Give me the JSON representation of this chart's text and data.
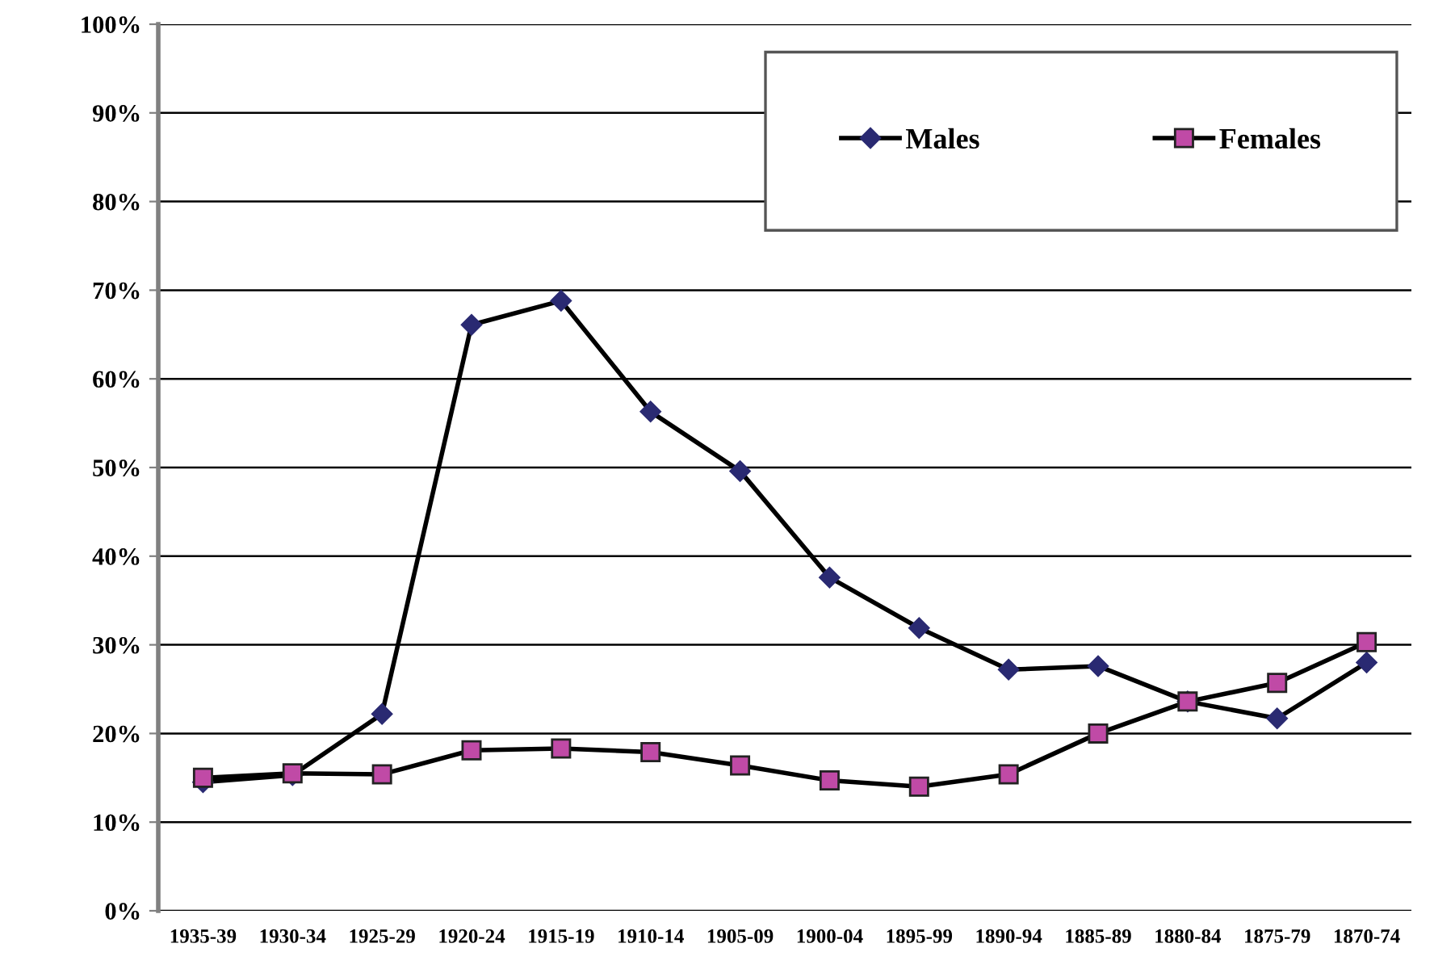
{
  "chart_data": {
    "type": "line",
    "categories": [
      "1935-39",
      "1930-34",
      "1925-29",
      "1920-24",
      "1915-19",
      "1910-14",
      "1905-09",
      "1900-04",
      "1895-99",
      "1890-94",
      "1885-89",
      "1880-84",
      "1875-79",
      "1870-74"
    ],
    "series": [
      {
        "name": "Males",
        "color": "#2a2a72",
        "marker": "diamond",
        "values": [
          14.5,
          15.3,
          22.2,
          66.1,
          68.8,
          56.3,
          49.6,
          37.6,
          31.9,
          27.2,
          27.6,
          23.6,
          21.7,
          28.0
        ]
      },
      {
        "name": "Females",
        "color": "#c04aa6",
        "marker": "square",
        "values": [
          15.0,
          15.5,
          15.4,
          18.1,
          18.3,
          17.9,
          16.4,
          14.7,
          14.0,
          15.4,
          20.0,
          23.6,
          25.7,
          30.3
        ]
      }
    ],
    "ylim": [
      0,
      100
    ],
    "yticks": [
      {
        "value": 0,
        "label": "0%"
      },
      {
        "value": 10,
        "label": "10%"
      },
      {
        "value": 20,
        "label": "20%"
      },
      {
        "value": 30,
        "label": "30%"
      },
      {
        "value": 40,
        "label": "40%"
      },
      {
        "value": 50,
        "label": "50%"
      },
      {
        "value": 60,
        "label": "60%"
      },
      {
        "value": 70,
        "label": "70%"
      },
      {
        "value": 80,
        "label": "80%"
      },
      {
        "value": 90,
        "label": "90%"
      },
      {
        "value": 100,
        "label": "100%"
      }
    ],
    "grid": "y",
    "legend": "top right",
    "line_style": "solid"
  }
}
